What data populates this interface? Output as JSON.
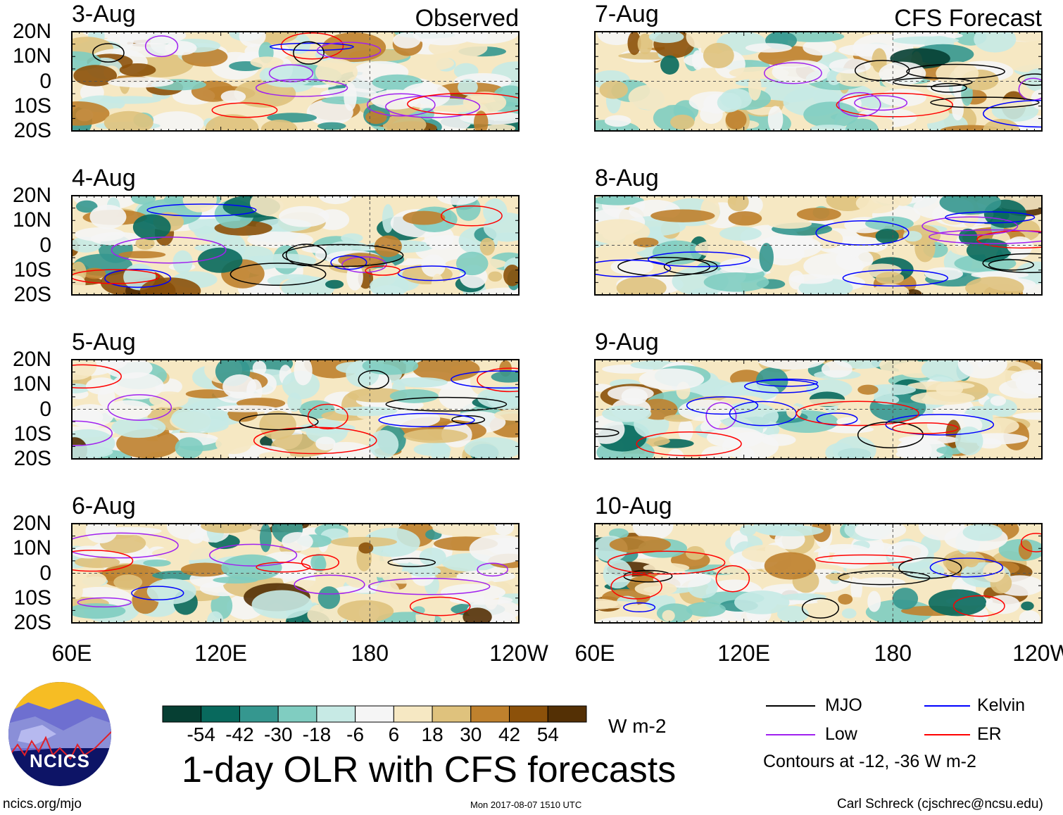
{
  "panels": [
    {
      "date": "3-Aug",
      "label": "Observed"
    },
    {
      "date": "4-Aug"
    },
    {
      "date": "5-Aug"
    },
    {
      "date": "6-Aug"
    },
    {
      "date": "7-Aug",
      "label": "CFS Forecast"
    },
    {
      "date": "8-Aug"
    },
    {
      "date": "9-Aug"
    },
    {
      "date": "10-Aug"
    }
  ],
  "lat_labels": [
    "20N",
    "10N",
    "0",
    "10S",
    "20S"
  ],
  "lon_labels": [
    "60E",
    "120E",
    "180",
    "120W"
  ],
  "colorbar": {
    "colors": [
      "#063f33",
      "#08695d",
      "#35978f",
      "#80cdc1",
      "#c7eae5",
      "#f5f5f5",
      "#f6e8c3",
      "#dfc27d",
      "#bf812d",
      "#8c510a",
      "#543005"
    ],
    "labels": [
      "-54",
      "-42",
      "-30",
      "-18",
      "-6",
      "6",
      "18",
      "30",
      "42",
      "54"
    ],
    "units": "W m-2"
  },
  "title": "1-day OLR with CFS forecasts",
  "legend": {
    "items": [
      {
        "label": "MJO",
        "color": "#000000"
      },
      {
        "label": "Kelvin",
        "color": "#0000ff"
      },
      {
        "label": "Low",
        "color": "#a020f0"
      },
      {
        "label": "ER",
        "color": "#ff0000"
      }
    ],
    "note": "Contours at -12, -36 W m-2"
  },
  "footer": {
    "left": "ncics.org/mjo",
    "center": "Mon 2017-08-07 1510 UTC",
    "right": "Carl Schreck (cjschrec@ncsu.edu)"
  },
  "logo_text": "NCICS"
}
